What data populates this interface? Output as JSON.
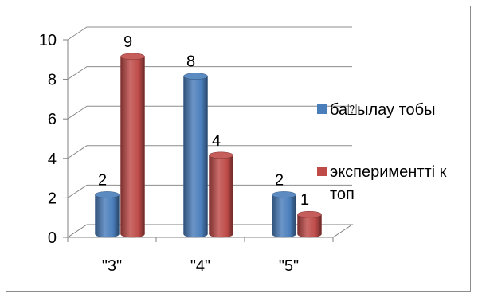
{
  "chart_data": {
    "type": "bar",
    "style": "3d clustered cylinder",
    "categories": [
      "\"3\"",
      "\"4\"",
      "\"5\""
    ],
    "series": [
      {
        "name": "ба⍰ылау тобы",
        "values": [
          2,
          8,
          2
        ],
        "color": "#4a7ebb"
      },
      {
        "name": "экспериментті к топ",
        "values": [
          9,
          4,
          1
        ],
        "color": "#be4b48"
      }
    ],
    "title": "",
    "xlabel": "",
    "ylabel": "",
    "ylim": [
      0,
      10
    ],
    "yticks": [
      0,
      2,
      4,
      6,
      8,
      10
    ],
    "grid": true,
    "legend": "right",
    "data_labels": true
  }
}
